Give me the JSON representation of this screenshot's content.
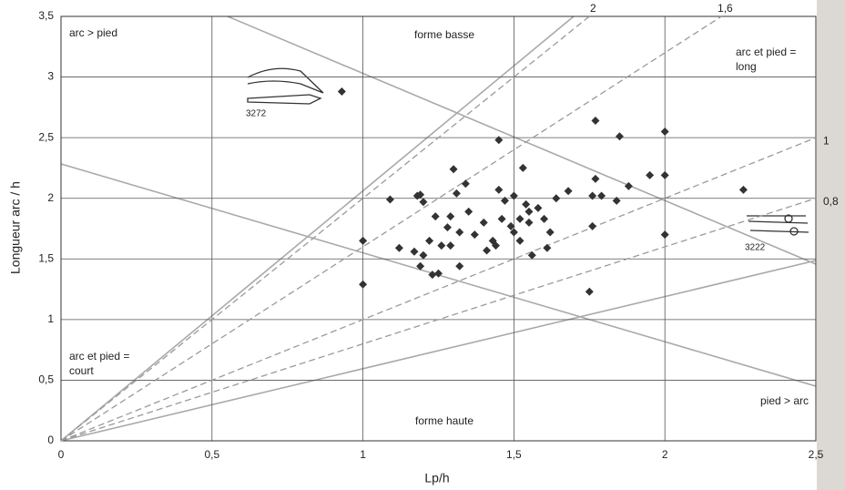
{
  "chart_data": {
    "type": "scatter",
    "xlabel": "Lp/h",
    "ylabel": "Longueur arc / h",
    "xlim": [
      0,
      2.5
    ],
    "ylim": [
      0,
      3.5
    ],
    "xticks": [
      0,
      {
        "value": 0.5,
        "label": "0,5"
      },
      1,
      {
        "value": 1.5,
        "label": "1,5"
      },
      2,
      {
        "value": 2.5,
        "label": "2,5"
      }
    ],
    "yticks": [
      0,
      {
        "value": 0.5,
        "label": "0,5"
      },
      1,
      {
        "value": 1.5,
        "label": "1,5"
      },
      2,
      {
        "value": 2.5,
        "label": "2,5"
      },
      3,
      {
        "value": 3.5,
        "label": "3,5"
      }
    ],
    "grid": true,
    "reference_lines": [
      {
        "slope": 2,
        "label": "2"
      },
      {
        "slope": 1.6,
        "label": "1,6"
      },
      {
        "slope": 1,
        "label": "1"
      },
      {
        "slope": 0.8,
        "label": "0,8"
      }
    ],
    "annotations": {
      "arc_pied": "arc > pied",
      "forme_basse": "forme basse",
      "long": [
        "arc et pied =",
        "long"
      ],
      "court": [
        "arc et pied =",
        "court"
      ],
      "forme_haute": "forme haute",
      "pied_arc": "pied > arc",
      "fig1": "3272",
      "fig2": "3222"
    },
    "color": "#333333",
    "x": [
      0.93,
      1.0,
      1.0,
      1.09,
      1.12,
      1.17,
      1.18,
      1.19,
      1.2,
      1.19,
      1.2,
      1.22,
      1.23,
      1.24,
      1.25,
      1.26,
      1.28,
      1.29,
      1.29,
      1.3,
      1.31,
      1.32,
      1.32,
      1.34,
      1.35,
      1.37,
      1.4,
      1.41,
      1.43,
      1.44,
      1.45,
      1.45,
      1.46,
      1.47,
      1.49,
      1.5,
      1.5,
      1.52,
      1.52,
      1.53,
      1.54,
      1.55,
      1.55,
      1.56,
      1.58,
      1.6,
      1.61,
      1.62,
      1.64,
      1.68,
      1.75,
      1.76,
      1.76,
      1.77,
      1.77,
      1.79,
      1.84,
      1.85,
      1.88,
      1.95,
      2.0,
      2.0,
      2.0,
      2.26
    ],
    "values": [
      2.88,
      1.29,
      1.65,
      1.99,
      1.59,
      1.56,
      2.02,
      2.03,
      1.53,
      1.44,
      1.97,
      1.65,
      1.37,
      1.85,
      1.38,
      1.61,
      1.76,
      1.85,
      1.61,
      2.24,
      2.04,
      1.72,
      1.44,
      2.12,
      1.89,
      1.7,
      1.8,
      1.57,
      1.65,
      1.61,
      2.07,
      2.48,
      1.83,
      1.98,
      1.77,
      2.02,
      1.72,
      1.65,
      1.83,
      2.25,
      1.95,
      1.89,
      1.8,
      1.53,
      1.92,
      1.83,
      1.59,
      1.72,
      2.0,
      2.06,
      1.23,
      1.77,
      2.02,
      2.64,
      2.16,
      2.02,
      1.98,
      2.51,
      2.1,
      2.19,
      2.19,
      2.55,
      1.7,
      2.07
    ]
  }
}
